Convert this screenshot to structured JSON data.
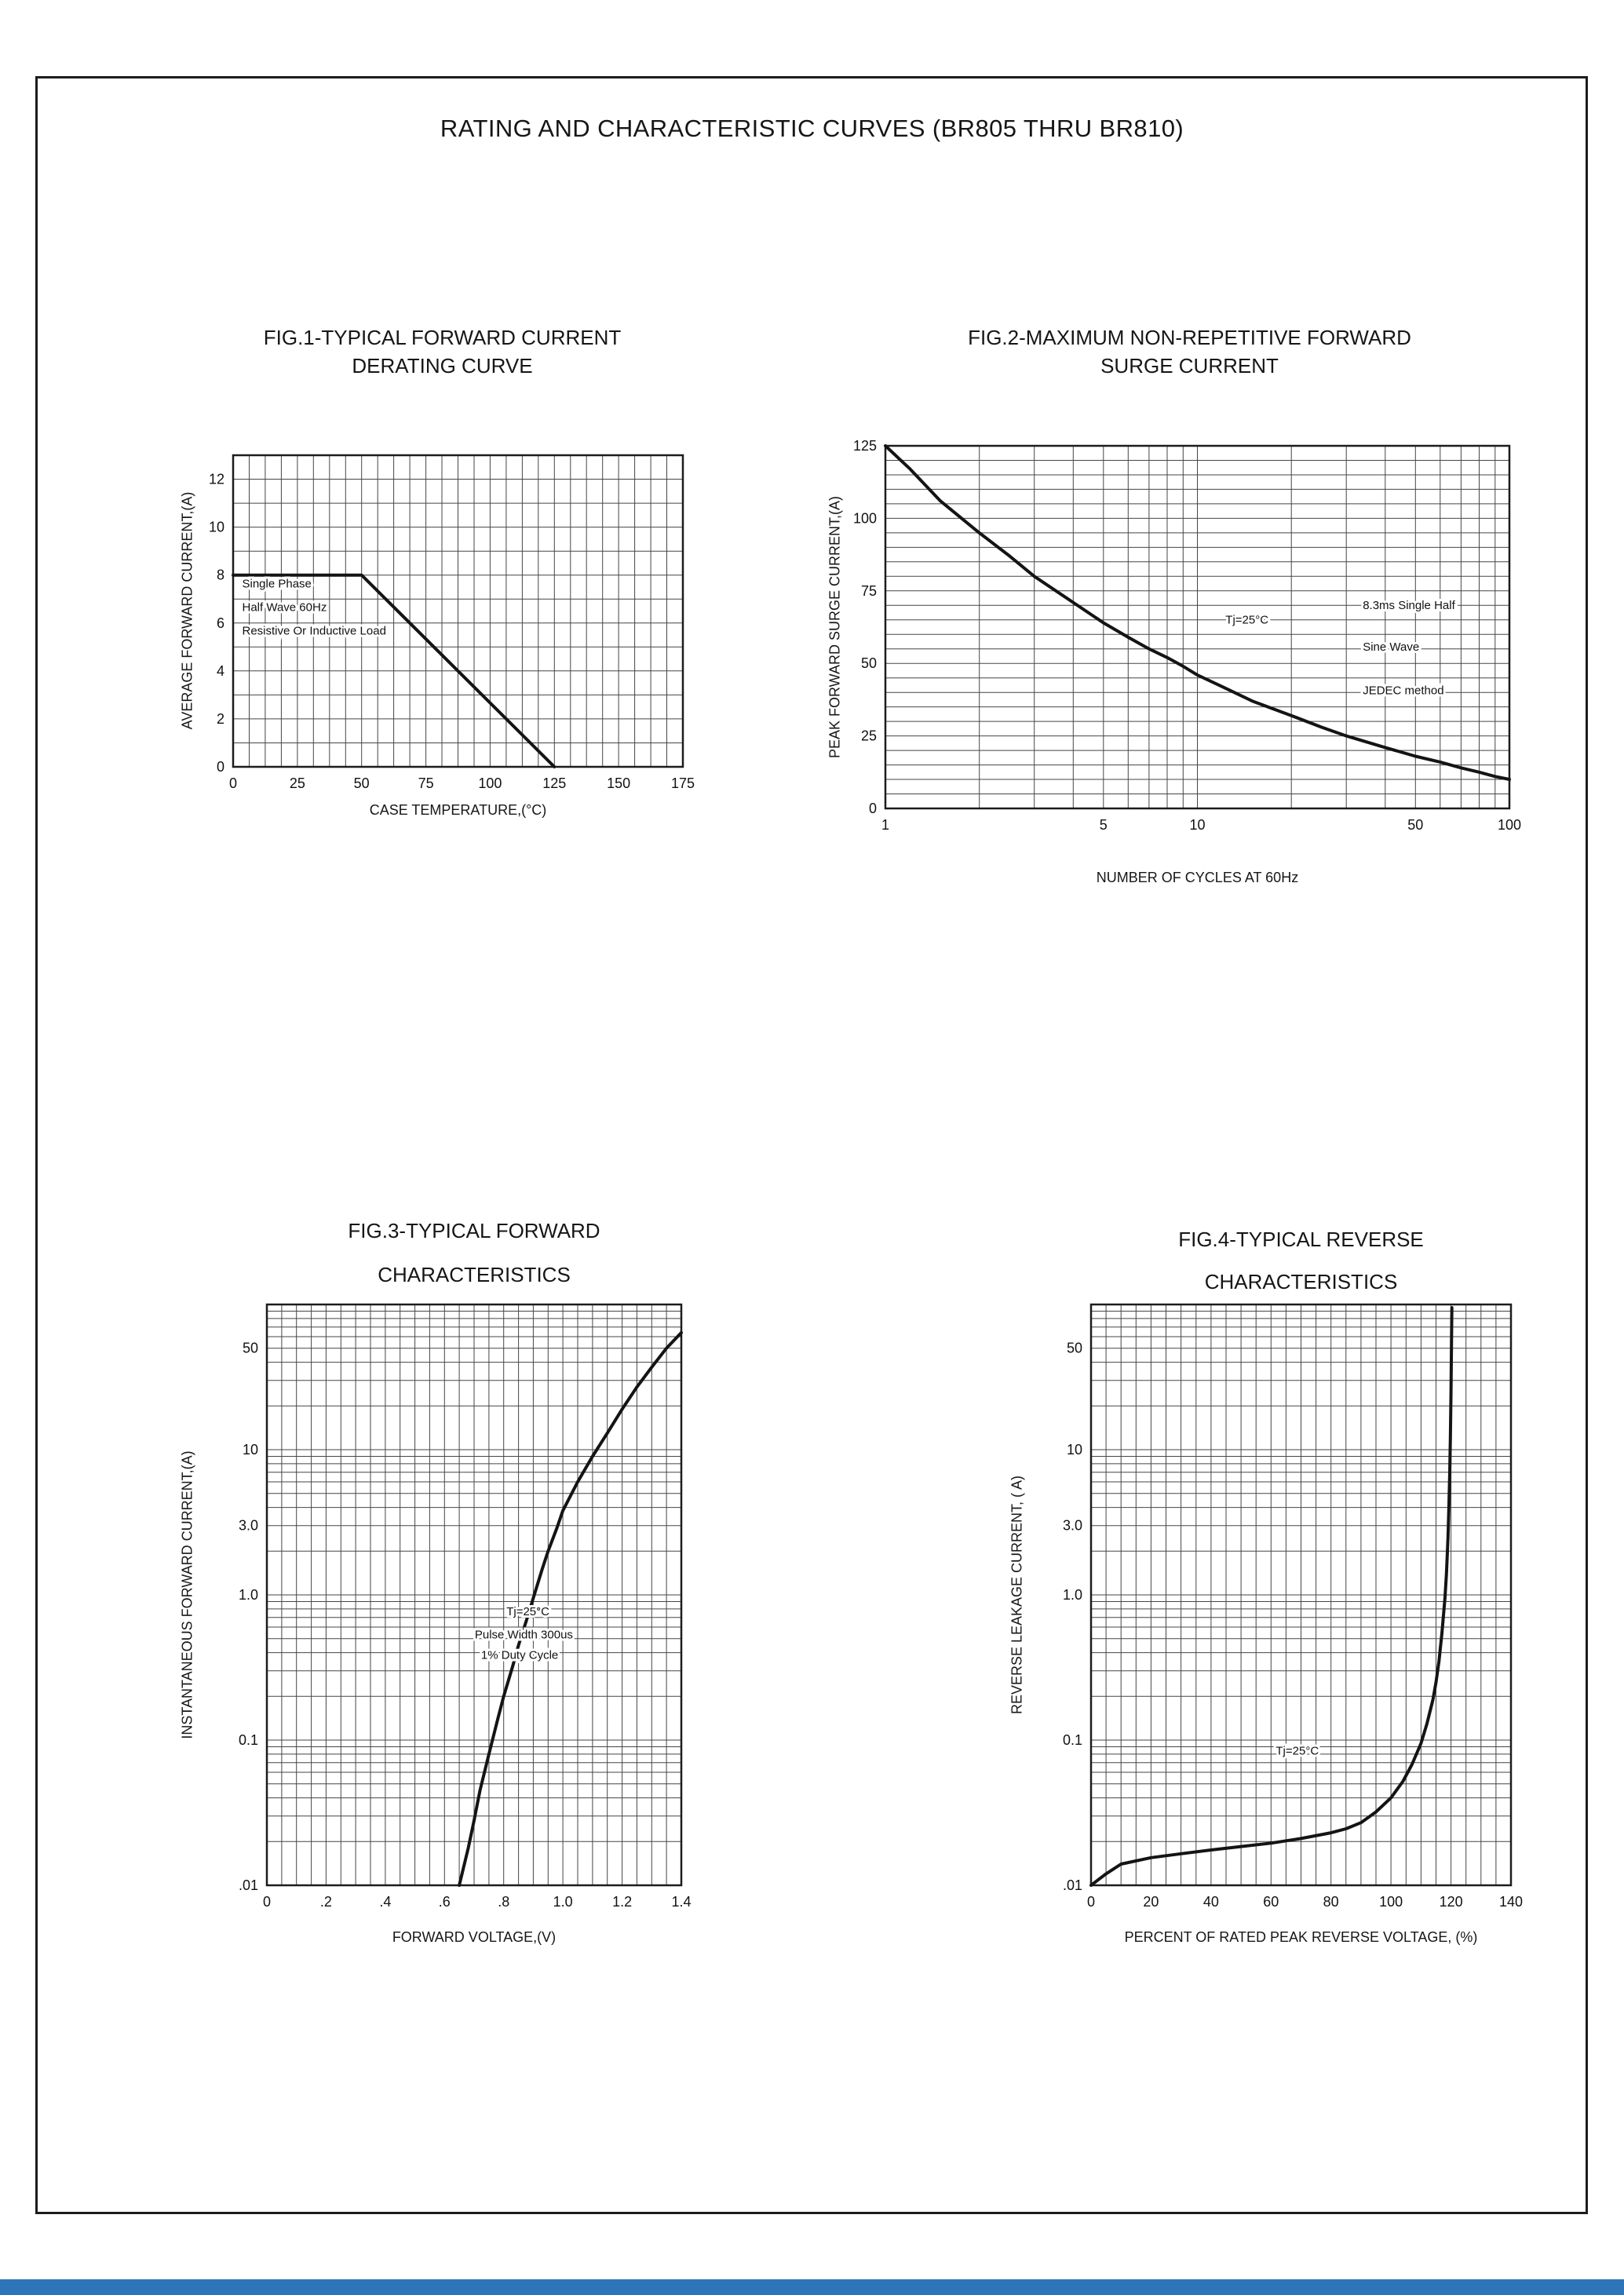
{
  "page": {
    "title": "RATING AND CHARACTERISTIC CURVES (BR805 THRU BR810)",
    "footer_bar_color": "#2d74b8"
  },
  "chart_data": [
    {
      "type": "line",
      "title": [
        "FIG.1-TYPICAL FORWARD CURRENT",
        "DERATING CURVE"
      ],
      "xlabel": "CASE TEMPERATURE,(°C)",
      "ylabel": "AVERAGE FORWARD CURRENT,(A)",
      "x_axis": {
        "scale": "linear",
        "min": 0,
        "max": 175,
        "minor_step": 6.25,
        "ticks": [
          0,
          25,
          50,
          75,
          100,
          125,
          150,
          175
        ],
        "tick_labels": [
          "0",
          "25",
          "50",
          "75",
          "100",
          "125",
          "150",
          "175"
        ]
      },
      "y_axis": {
        "scale": "linear",
        "min": 0,
        "max": 13,
        "minor_step": 1,
        "ticks": [
          0,
          2,
          4,
          6,
          8,
          10,
          12
        ],
        "tick_labels": [
          "0",
          "2",
          "4",
          "6",
          "8",
          "10",
          "12"
        ]
      },
      "series": [
        {
          "name": "derating-curve",
          "points": [
            [
              0,
              8
            ],
            [
              50,
              8
            ],
            [
              125,
              0
            ]
          ]
        }
      ],
      "annotations": [
        {
          "text": "Single Phase",
          "fx": 0.02,
          "fy": 0.425,
          "anchor": "start"
        },
        {
          "text": "Half Wave 60Hz",
          "fx": 0.02,
          "fy": 0.5,
          "anchor": "start"
        },
        {
          "text": "Resistive Or Inductive Load",
          "fx": 0.02,
          "fy": 0.575,
          "anchor": "start"
        }
      ]
    },
    {
      "type": "line",
      "title": [
        "FIG.2-MAXIMUM NON-REPETITIVE FORWARD",
        "SURGE CURRENT"
      ],
      "xlabel": "NUMBER OF CYCLES AT 60Hz",
      "ylabel": "PEAK FORWARD SURGE CURRENT,(A)",
      "x_axis": {
        "scale": "log",
        "min": 1,
        "max": 100,
        "ticks": [
          1,
          5,
          10,
          50,
          100
        ],
        "tick_labels": [
          "1",
          "5",
          "10",
          "50",
          "100"
        ]
      },
      "y_axis": {
        "scale": "linear",
        "min": 0,
        "max": 125,
        "minor_step": 5,
        "ticks": [
          0,
          25,
          50,
          75,
          100,
          125
        ],
        "tick_labels": [
          "0",
          "25",
          "50",
          "75",
          "100",
          "125"
        ]
      },
      "series": [
        {
          "name": "surge-current-curve",
          "points": [
            [
              1,
              125
            ],
            [
              1.2,
              117
            ],
            [
              1.5,
              106
            ],
            [
              2,
              95
            ],
            [
              2.5,
              87
            ],
            [
              3,
              80
            ],
            [
              4,
              71
            ],
            [
              5,
              64
            ],
            [
              6,
              59
            ],
            [
              7,
              55
            ],
            [
              8,
              52
            ],
            [
              9,
              49
            ],
            [
              10,
              46
            ],
            [
              12,
              42
            ],
            [
              15,
              37
            ],
            [
              20,
              32
            ],
            [
              25,
              28
            ],
            [
              30,
              25
            ],
            [
              40,
              21
            ],
            [
              50,
              18
            ],
            [
              60,
              16
            ],
            [
              70,
              14
            ],
            [
              80,
              12.5
            ],
            [
              90,
              11
            ],
            [
              100,
              10
            ]
          ]
        }
      ],
      "annotations": [
        {
          "text": "Tj=25°C",
          "fx": 0.545,
          "fy": 0.49,
          "anchor": "start"
        },
        {
          "text": "8.3ms Single Half",
          "fx": 0.765,
          "fy": 0.45,
          "anchor": "start"
        },
        {
          "text": "Sine Wave",
          "fx": 0.765,
          "fy": 0.565,
          "anchor": "start"
        },
        {
          "text": "JEDEC method",
          "fx": 0.765,
          "fy": 0.685,
          "anchor": "start"
        }
      ]
    },
    {
      "type": "line",
      "title": [
        "FIG.3-TYPICAL FORWARD",
        "CHARACTERISTICS"
      ],
      "xlabel": "FORWARD VOLTAGE,(V)",
      "ylabel": "INSTANTANEOUS FORWARD CURRENT,(A)",
      "x_axis": {
        "scale": "linear",
        "min": 0,
        "max": 1.4,
        "minor_step": 0.05,
        "ticks": [
          0,
          0.2,
          0.4,
          0.6,
          0.8,
          1.0,
          1.2,
          1.4
        ],
        "tick_labels": [
          "0",
          ".2",
          ".4",
          ".6",
          ".8",
          "1.0",
          "1.2",
          "1.4"
        ]
      },
      "y_axis": {
        "scale": "log",
        "min": 0.01,
        "max": 100,
        "ticks": [
          50,
          10,
          3,
          1,
          0.1,
          0.01
        ],
        "tick_labels": [
          "50",
          "10",
          "3.0",
          "1.0",
          "0.1",
          ".01"
        ]
      },
      "series": [
        {
          "name": "forward-characteristic-curve",
          "points": [
            [
              0.65,
              0.01
            ],
            [
              0.68,
              0.018
            ],
            [
              0.7,
              0.028
            ],
            [
              0.72,
              0.045
            ],
            [
              0.75,
              0.08
            ],
            [
              0.78,
              0.14
            ],
            [
              0.8,
              0.2
            ],
            [
              0.83,
              0.32
            ],
            [
              0.85,
              0.45
            ],
            [
              0.88,
              0.7
            ],
            [
              0.9,
              0.95
            ],
            [
              0.93,
              1.5
            ],
            [
              0.95,
              2.0
            ],
            [
              0.98,
              2.9
            ],
            [
              1.0,
              3.8
            ],
            [
              1.05,
              6.0
            ],
            [
              1.1,
              9.0
            ],
            [
              1.15,
              13
            ],
            [
              1.2,
              19
            ],
            [
              1.25,
              27
            ],
            [
              1.3,
              37
            ],
            [
              1.35,
              50
            ],
            [
              1.4,
              64
            ]
          ]
        }
      ],
      "annotations": [
        {
          "text": "Tj=25°C",
          "fx": 0.63,
          "fy": 0.535,
          "anchor": "middle"
        },
        {
          "text": "Pulse Width 300us",
          "fx": 0.62,
          "fy": 0.575,
          "anchor": "middle"
        },
        {
          "text": "1% Duty Cycle",
          "fx": 0.61,
          "fy": 0.61,
          "anchor": "middle"
        }
      ]
    },
    {
      "type": "line",
      "title": [
        "FIG.4-TYPICAL REVERSE",
        "CHARACTERISTICS"
      ],
      "xlabel": "PERCENT OF RATED PEAK REVERSE VOLTAGE, (%)",
      "ylabel": "REVERSE LEAKAGE CURRENT, ( A)",
      "x_axis": {
        "scale": "linear",
        "min": 0,
        "max": 140,
        "minor_step": 5,
        "ticks": [
          0,
          20,
          40,
          60,
          80,
          100,
          120,
          140
        ],
        "tick_labels": [
          "0",
          "20",
          "40",
          "60",
          "80",
          "100",
          "120",
          "140"
        ]
      },
      "y_axis": {
        "scale": "log",
        "min": 0.01,
        "max": 100,
        "ticks": [
          50,
          10,
          3,
          1,
          0.1,
          0.01
        ],
        "tick_labels": [
          "50",
          "10",
          "3.0",
          "1.0",
          "0.1",
          ".01"
        ]
      },
      "series": [
        {
          "name": "reverse-leakage-curve",
          "points": [
            [
              0,
              0.01
            ],
            [
              5,
              0.012
            ],
            [
              10,
              0.014
            ],
            [
              20,
              0.0155
            ],
            [
              30,
              0.0165
            ],
            [
              40,
              0.0175
            ],
            [
              50,
              0.0185
            ],
            [
              60,
              0.0195
            ],
            [
              70,
              0.021
            ],
            [
              80,
              0.023
            ],
            [
              85,
              0.0245
            ],
            [
              90,
              0.027
            ],
            [
              95,
              0.032
            ],
            [
              100,
              0.04
            ],
            [
              104,
              0.052
            ],
            [
              107,
              0.068
            ],
            [
              110,
              0.095
            ],
            [
              112,
              0.13
            ],
            [
              114,
              0.19
            ],
            [
              115,
              0.25
            ],
            [
              116,
              0.35
            ],
            [
              117,
              0.55
            ],
            [
              118,
              0.95
            ],
            [
              118.5,
              1.4
            ],
            [
              119,
              2.5
            ],
            [
              119.3,
              4
            ],
            [
              119.6,
              7
            ],
            [
              119.8,
              12
            ],
            [
              120,
              25
            ],
            [
              120.2,
              60
            ],
            [
              120.3,
              95
            ]
          ]
        }
      ],
      "annotations": [
        {
          "text": "Tj=25°C",
          "fx": 0.44,
          "fy": 0.775,
          "anchor": "start"
        }
      ]
    }
  ]
}
